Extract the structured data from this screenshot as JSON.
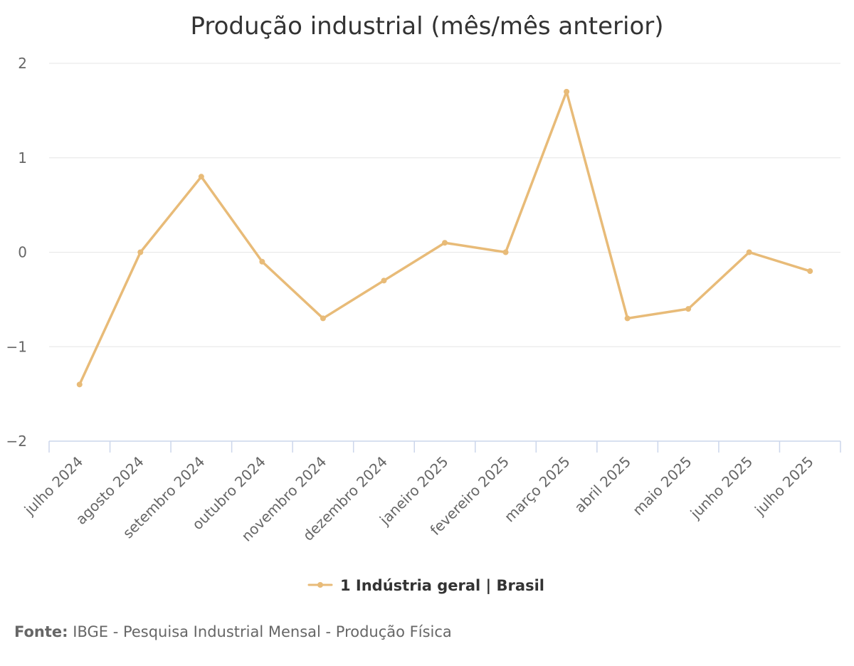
{
  "chart_data": {
    "type": "line",
    "title": "Produção industrial (mês/mês anterior)",
    "categories": [
      "julho 2024",
      "agosto 2024",
      "setembro 2024",
      "outubro 2024",
      "novembro 2024",
      "dezembro 2024",
      "janeiro 2025",
      "fevereiro 2025",
      "março 2025",
      "abril 2025",
      "maio 2025",
      "junho 2025",
      "julho 2025"
    ],
    "series": [
      {
        "name": "1 Indústria geral | Brasil",
        "color": "#e8bb78",
        "values": [
          -1.4,
          0.0,
          0.8,
          -0.1,
          -0.7,
          -0.3,
          0.1,
          0.0,
          1.7,
          -0.7,
          -0.6,
          0.0,
          -0.2
        ]
      }
    ],
    "y_ticks": [
      "2",
      "1",
      "0",
      "−1",
      "−2"
    ],
    "ylim": [
      -2,
      2
    ],
    "grid": true,
    "legend_position": "bottom-center"
  },
  "source": {
    "prefix": "Fonte:",
    "text": "IBGE - Pesquisa Industrial Mensal - Produção Física"
  },
  "colors": {
    "series": "#e8bb78",
    "grid": "#e6e6e6",
    "axis": "#ccd6eb",
    "text": "#333333",
    "muted": "#666666"
  }
}
